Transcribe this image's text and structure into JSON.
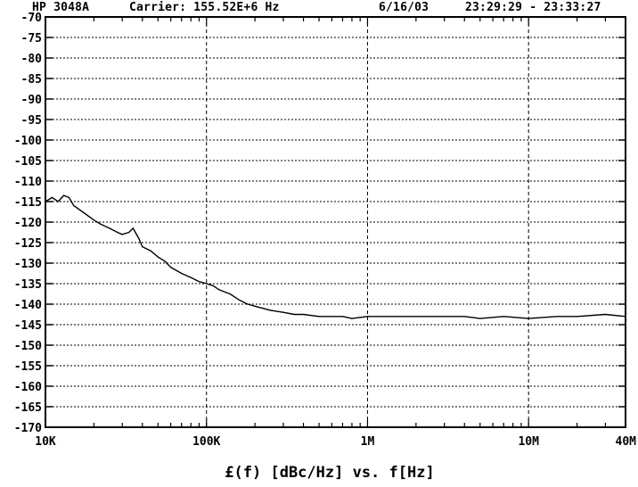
{
  "header": {
    "instrument": "HP 3048A",
    "carrier": "Carrier: 155.52E+6 Hz",
    "date": "6/16/03",
    "time_range": "23:29:29 - 23:33:27"
  },
  "chart_data": {
    "type": "line",
    "title": "",
    "xlabel": "£(f) [dBc/Hz] vs. f[Hz]",
    "ylabel": "",
    "x_scale": "log",
    "xlim": [
      10000,
      40000000
    ],
    "ylim": [
      -170,
      -70
    ],
    "x_tick_values": [
      10000,
      100000,
      1000000,
      10000000,
      40000000
    ],
    "x_tick_labels": [
      "10K",
      "100K",
      "1M",
      "10M",
      "40M"
    ],
    "y_ticks": [
      -70,
      -75,
      -80,
      -85,
      -90,
      -95,
      -100,
      -105,
      -110,
      -115,
      -120,
      -125,
      -130,
      -135,
      -140,
      -145,
      -150,
      -155,
      -160,
      -165,
      -170
    ],
    "grid": true,
    "line_color": "#000000",
    "series": [
      {
        "x": [
          10000,
          11000,
          12000,
          13000,
          14000,
          15000,
          17000,
          20000,
          22000,
          25000,
          28000,
          30000,
          33000,
          35000,
          38000,
          40000,
          45000,
          50000,
          55000,
          60000,
          70000,
          80000,
          90000,
          100000,
          110000,
          120000,
          140000,
          160000,
          180000,
          200000,
          250000,
          300000,
          350000,
          400000,
          500000,
          600000,
          700000,
          800000,
          1000000,
          1500000,
          2000000,
          3000000,
          4000000,
          5000000,
          7000000,
          10000000,
          15000000,
          20000000,
          30000000,
          40000000
        ],
        "y": [
          -115,
          -114,
          -115,
          -113.5,
          -114,
          -116,
          -117.5,
          -119.5,
          -120.5,
          -121.5,
          -122.5,
          -123,
          -122.5,
          -121.5,
          -124,
          -126,
          -127,
          -128.5,
          -129.5,
          -131,
          -132.5,
          -133.5,
          -134.5,
          -135,
          -135.5,
          -136.5,
          -137.5,
          -139,
          -140,
          -140.5,
          -141.5,
          -142,
          -142.5,
          -142.5,
          -143,
          -143,
          -143,
          -143.5,
          -143,
          -143,
          -143,
          -143,
          -143,
          -143.5,
          -143,
          -143.5,
          -143,
          -143,
          -142.5,
          -143
        ]
      }
    ]
  }
}
